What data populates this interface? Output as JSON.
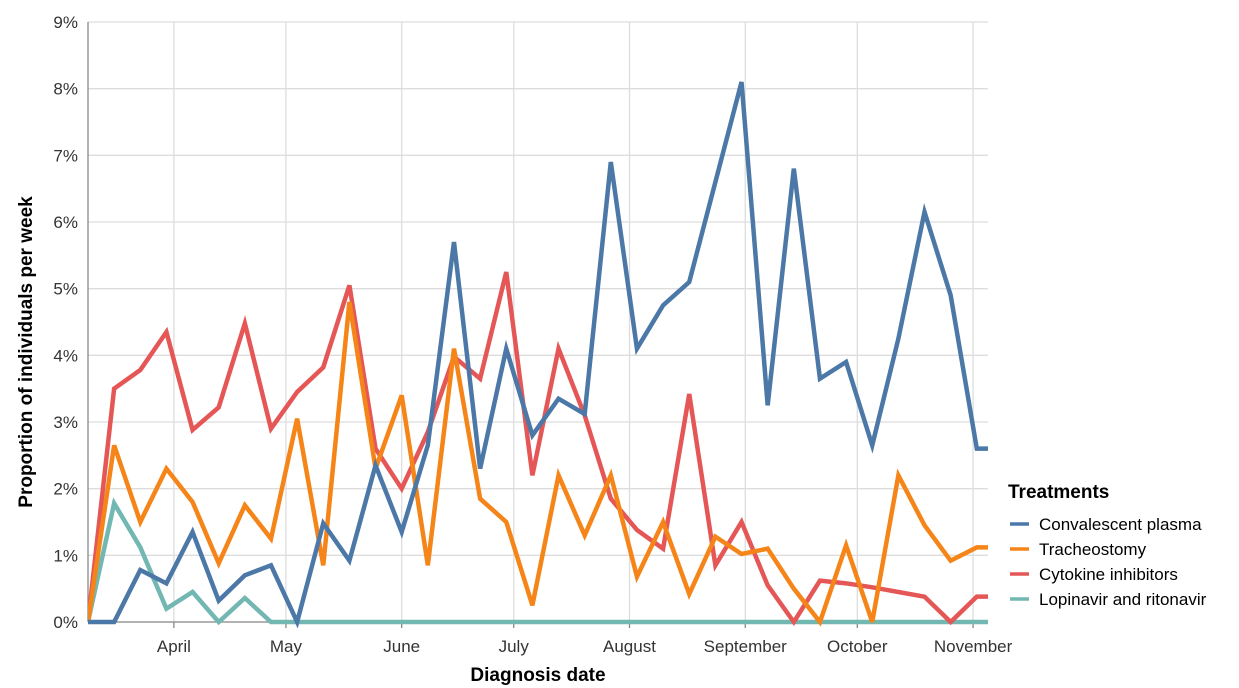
{
  "chart_data": {
    "type": "line",
    "title": "",
    "xlabel": "Diagnosis date",
    "ylabel": "Proportion of individuals per week",
    "x_ticks": [
      {
        "label": "April",
        "date": "2020-04-01"
      },
      {
        "label": "May",
        "date": "2020-05-01"
      },
      {
        "label": "June",
        "date": "2020-06-01"
      },
      {
        "label": "July",
        "date": "2020-07-01"
      },
      {
        "label": "August",
        "date": "2020-08-01"
      },
      {
        "label": "September",
        "date": "2020-09-01"
      },
      {
        "label": "October",
        "date": "2020-10-01"
      },
      {
        "label": "November",
        "date": "2020-11-01"
      }
    ],
    "xlim": [
      "2020-03-09",
      "2020-11-05"
    ],
    "y_ticks": [
      {
        "label": "0%",
        "value": 0
      },
      {
        "label": "1%",
        "value": 1
      },
      {
        "label": "2%",
        "value": 2
      },
      {
        "label": "3%",
        "value": 3
      },
      {
        "label": "4%",
        "value": 4
      },
      {
        "label": "5%",
        "value": 5
      },
      {
        "label": "6%",
        "value": 6
      },
      {
        "label": "7%",
        "value": 7
      },
      {
        "label": "8%",
        "value": 8
      },
      {
        "label": "9%",
        "value": 9
      }
    ],
    "ylim": [
      0,
      9
    ],
    "grid": true,
    "legend": {
      "title": "Treatments",
      "position": "right"
    },
    "x": [
      "2020-03-09",
      "2020-03-16",
      "2020-03-23",
      "2020-03-30",
      "2020-04-06",
      "2020-04-13",
      "2020-04-20",
      "2020-04-27",
      "2020-05-04",
      "2020-05-11",
      "2020-05-18",
      "2020-05-25",
      "2020-06-01",
      "2020-06-08",
      "2020-06-15",
      "2020-06-22",
      "2020-06-29",
      "2020-07-06",
      "2020-07-13",
      "2020-07-20",
      "2020-07-27",
      "2020-08-03",
      "2020-08-10",
      "2020-08-17",
      "2020-08-24",
      "2020-08-31",
      "2020-09-07",
      "2020-09-14",
      "2020-09-21",
      "2020-09-28",
      "2020-10-05",
      "2020-10-12",
      "2020-10-19",
      "2020-10-26",
      "2020-11-02",
      "2020-11-09"
    ],
    "series": [
      {
        "name": "Convalescent plasma",
        "color": "#4c78a8",
        "values": [
          0,
          0,
          0.78,
          0.58,
          1.35,
          0.32,
          0.7,
          0.85,
          0,
          1.48,
          0.92,
          2.35,
          1.35,
          2.65,
          5.7,
          2.3,
          4.1,
          2.8,
          3.35,
          3.12,
          6.9,
          4.1,
          4.75,
          5.1,
          6.6,
          8.1,
          3.25,
          6.8,
          3.65,
          3.9,
          2.65,
          4.25,
          6.15,
          4.9,
          2.6,
          2.6
        ]
      },
      {
        "name": "Tracheostomy",
        "color": "#f58518",
        "values": [
          0,
          2.65,
          1.5,
          2.3,
          1.8,
          0.88,
          1.75,
          1.25,
          3.05,
          0.85,
          4.8,
          2.3,
          3.4,
          0.85,
          4.1,
          1.85,
          1.5,
          0.25,
          2.2,
          1.3,
          2.2,
          0.68,
          1.5,
          0.42,
          1.28,
          1.02,
          1.1,
          0.5,
          0,
          1.15,
          0,
          2.2,
          1.45,
          0.92,
          1.12,
          1.12
        ]
      },
      {
        "name": "Cytokine inhibitors",
        "color": "#e45756",
        "values": [
          0,
          3.5,
          3.78,
          4.35,
          2.88,
          3.22,
          4.48,
          2.9,
          3.45,
          3.82,
          5.05,
          2.6,
          2.0,
          2.85,
          3.98,
          3.65,
          5.25,
          2.2,
          4.1,
          3.1,
          1.85,
          1.38,
          1.1,
          3.42,
          0.85,
          1.5,
          0.55,
          0,
          0.62,
          0.58,
          0.52,
          0.45,
          0.38,
          0,
          0.38,
          0.38
        ]
      },
      {
        "name": "Lopinavir and ritonavir",
        "color": "#72b7b2",
        "values": [
          0,
          1.78,
          1.12,
          0.2,
          0.45,
          0,
          0.36,
          0,
          0,
          0,
          0,
          0,
          0,
          0,
          0,
          0,
          0,
          0,
          0,
          0,
          0,
          0,
          0,
          0,
          0,
          0,
          0,
          0,
          0,
          0,
          0,
          0,
          0,
          0,
          0,
          0
        ]
      }
    ]
  }
}
